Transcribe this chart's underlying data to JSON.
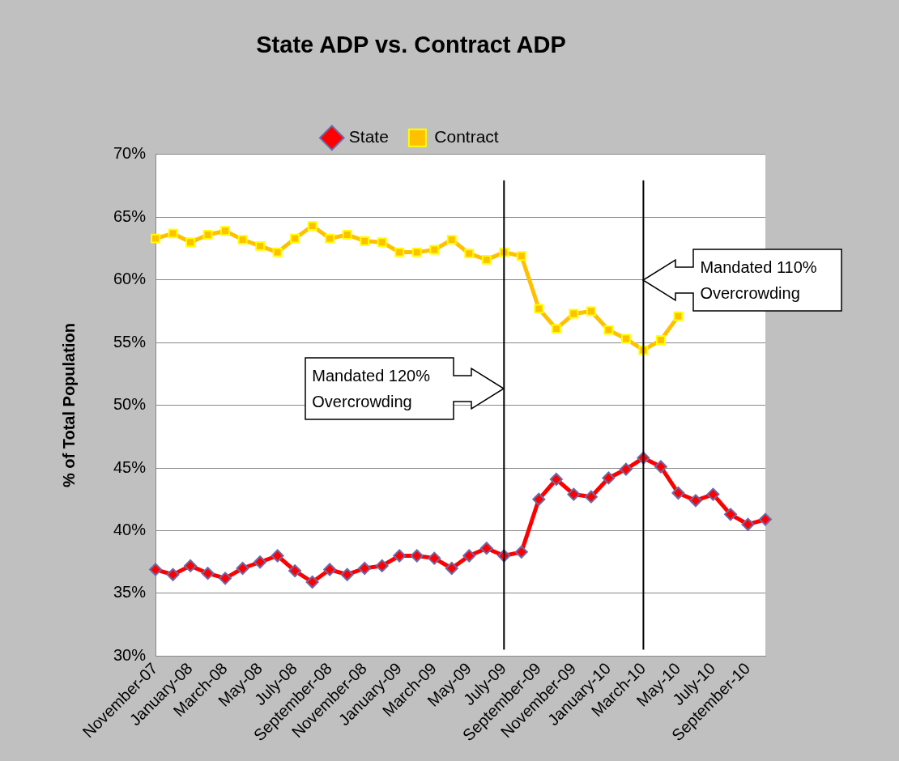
{
  "chart_data": {
    "type": "line",
    "title": "State ADP vs. Contract ADP",
    "ylabel": "% of Total Population",
    "categories": [
      "November-07",
      null,
      "January-08",
      null,
      "March-08",
      null,
      "May-08",
      null,
      "July-08",
      null,
      "September-08",
      null,
      "November-08",
      null,
      "January-09",
      null,
      "March-09",
      null,
      "May-09",
      null,
      "July-09",
      null,
      "September-09",
      null,
      "November-09",
      null,
      "January-10",
      null,
      "March-10",
      null,
      "May-10",
      null,
      "July-10",
      null,
      "September-10",
      null
    ],
    "series": [
      {
        "name": "State",
        "color": "#ff0000",
        "marker": "diamond",
        "values": [
          36.9,
          36.5,
          37.2,
          36.6,
          36.2,
          37.0,
          37.5,
          38.0,
          36.8,
          35.9,
          36.9,
          36.5,
          37.0,
          37.2,
          38.0,
          38.0,
          37.8,
          37.0,
          38.0,
          38.6,
          38.0,
          38.3,
          42.5,
          44.1,
          42.9,
          42.7,
          44.2,
          44.9,
          45.8,
          45.1,
          43.0,
          42.4,
          42.9,
          41.3,
          40.5,
          40.9
        ]
      },
      {
        "name": "Contract",
        "color": "#ffc000",
        "marker": "square",
        "values": [
          63.3,
          63.7,
          63.0,
          63.6,
          63.9,
          63.2,
          62.7,
          62.2,
          63.3,
          64.3,
          63.3,
          63.6,
          63.1,
          63.0,
          62.2,
          62.2,
          62.4,
          63.2,
          62.1,
          61.6,
          62.2,
          61.9,
          57.7,
          56.1,
          57.3,
          57.5,
          56.0,
          55.3,
          54.4,
          55.2,
          57.1,
          null,
          null,
          null,
          null,
          null
        ]
      }
    ],
    "ylim": [
      30,
      70
    ],
    "yticks": [
      {
        "value": 30,
        "label": "30%"
      },
      {
        "value": 35,
        "label": "35%"
      },
      {
        "value": 40,
        "label": "40%"
      },
      {
        "value": 45,
        "label": "45%"
      },
      {
        "value": 50,
        "label": "50%"
      },
      {
        "value": 55,
        "label": "55%"
      },
      {
        "value": 60,
        "label": "60%"
      },
      {
        "value": 65,
        "label": "65%"
      },
      {
        "value": 70,
        "label": "70%"
      }
    ],
    "grid": "y",
    "legend": "top",
    "line_style": "solid",
    "ref_lines": [
      {
        "axis": "x",
        "value": "July-09",
        "color": "#000000"
      },
      {
        "axis": "x",
        "value": "March-10",
        "color": "#000000"
      }
    ],
    "annotations": [
      "Mandated 120% Overcrowding",
      "Mandated 110% Overcrowding"
    ]
  }
}
